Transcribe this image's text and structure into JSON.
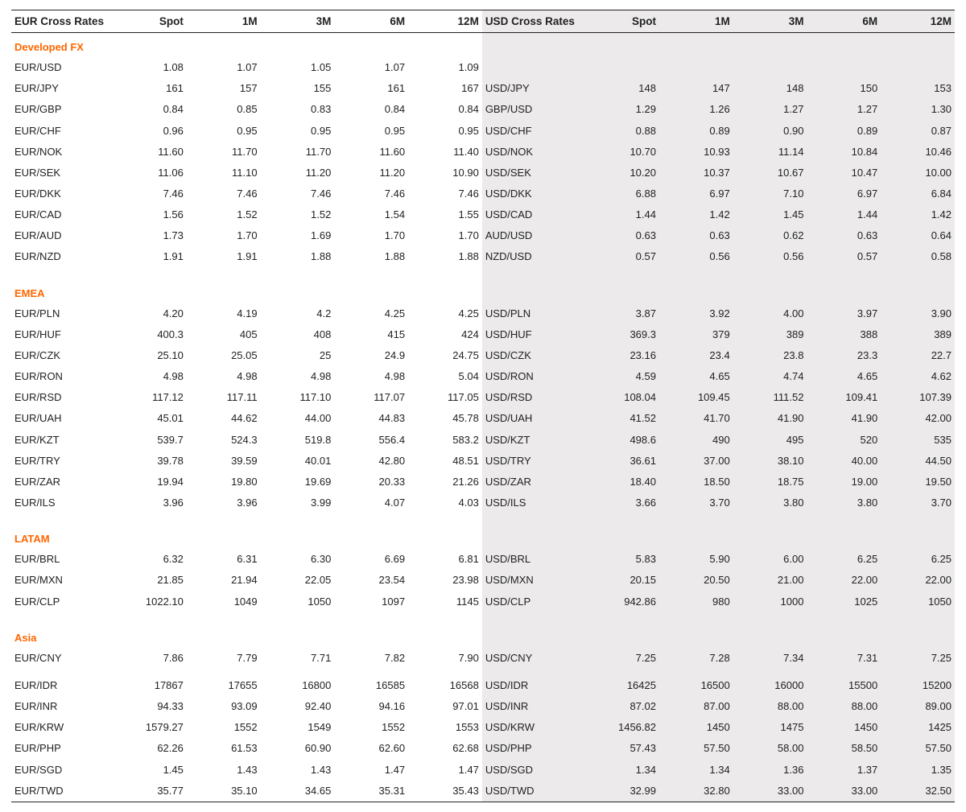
{
  "headers": {
    "eur": "EUR Cross Rates",
    "usd": "USD Cross Rates",
    "cols": [
      "Spot",
      "1M",
      "3M",
      "6M",
      "12M"
    ]
  },
  "styling": {
    "section_color": "#ff6600",
    "text_color": "#222222",
    "usd_bg": "#eceaea",
    "border_color": "#222222",
    "font_size_header": 13.5,
    "font_size_body": 13,
    "col_widths": {
      "label_eur": 110,
      "val": 80,
      "label_usd": 112
    }
  },
  "sections": [
    {
      "name": "Developed FX",
      "rows": [
        {
          "eur": "EUR/USD",
          "ev": [
            "1.08",
            "1.07",
            "1.05",
            "1.07",
            "1.09"
          ],
          "usd": "",
          "uv": [
            "",
            "",
            "",
            "",
            ""
          ]
        },
        {
          "eur": "EUR/JPY",
          "ev": [
            "161",
            "157",
            "155",
            "161",
            "167"
          ],
          "usd": "USD/JPY",
          "uv": [
            "148",
            "147",
            "148",
            "150",
            "153"
          ]
        },
        {
          "eur": "EUR/GBP",
          "ev": [
            "0.84",
            "0.85",
            "0.83",
            "0.84",
            "0.84"
          ],
          "usd": "GBP/USD",
          "uv": [
            "1.29",
            "1.26",
            "1.27",
            "1.27",
            "1.30"
          ]
        },
        {
          "eur": "EUR/CHF",
          "ev": [
            "0.96",
            "0.95",
            "0.95",
            "0.95",
            "0.95"
          ],
          "usd": "USD/CHF",
          "uv": [
            "0.88",
            "0.89",
            "0.90",
            "0.89",
            "0.87"
          ]
        },
        {
          "eur": "EUR/NOK",
          "ev": [
            "11.60",
            "11.70",
            "11.70",
            "11.60",
            "11.40"
          ],
          "usd": "USD/NOK",
          "uv": [
            "10.70",
            "10.93",
            "11.14",
            "10.84",
            "10.46"
          ]
        },
        {
          "eur": "EUR/SEK",
          "ev": [
            "11.06",
            "11.10",
            "11.20",
            "11.20",
            "10.90"
          ],
          "usd": "USD/SEK",
          "uv": [
            "10.20",
            "10.37",
            "10.67",
            "10.47",
            "10.00"
          ]
        },
        {
          "eur": "EUR/DKK",
          "ev": [
            "7.46",
            "7.46",
            "7.46",
            "7.46",
            "7.46"
          ],
          "usd": "USD/DKK",
          "uv": [
            "6.88",
            "6.97",
            "7.10",
            "6.97",
            "6.84"
          ]
        },
        {
          "eur": "EUR/CAD",
          "ev": [
            "1.56",
            "1.52",
            "1.52",
            "1.54",
            "1.55"
          ],
          "usd": "USD/CAD",
          "uv": [
            "1.44",
            "1.42",
            "1.45",
            "1.44",
            "1.42"
          ]
        },
        {
          "eur": "EUR/AUD",
          "ev": [
            "1.73",
            "1.70",
            "1.69",
            "1.70",
            "1.70"
          ],
          "usd": "AUD/USD",
          "uv": [
            "0.63",
            "0.63",
            "0.62",
            "0.63",
            "0.64"
          ]
        },
        {
          "eur": "EUR/NZD",
          "ev": [
            "1.91",
            "1.91",
            "1.88",
            "1.88",
            "1.88"
          ],
          "usd": "NZD/USD",
          "uv": [
            "0.57",
            "0.56",
            "0.56",
            "0.57",
            "0.58"
          ]
        }
      ]
    },
    {
      "name": "EMEA",
      "rows": [
        {
          "eur": "EUR/PLN",
          "ev": [
            "4.20",
            "4.19",
            "4.2",
            "4.25",
            "4.25"
          ],
          "usd": "USD/PLN",
          "uv": [
            "3.87",
            "3.92",
            "4.00",
            "3.97",
            "3.90"
          ]
        },
        {
          "eur": "EUR/HUF",
          "ev": [
            "400.3",
            "405",
            "408",
            "415",
            "424"
          ],
          "usd": "USD/HUF",
          "uv": [
            "369.3",
            "379",
            "389",
            "388",
            "389"
          ]
        },
        {
          "eur": "EUR/CZK",
          "ev": [
            "25.10",
            "25.05",
            "25",
            "24.9",
            "24.75"
          ],
          "usd": "USD/CZK",
          "uv": [
            "23.16",
            "23.4",
            "23.8",
            "23.3",
            "22.7"
          ]
        },
        {
          "eur": "EUR/RON",
          "ev": [
            "4.98",
            "4.98",
            "4.98",
            "4.98",
            "5.04"
          ],
          "usd": "USD/RON",
          "uv": [
            "4.59",
            "4.65",
            "4.74",
            "4.65",
            "4.62"
          ]
        },
        {
          "eur": "EUR/RSD",
          "ev": [
            "117.12",
            "117.11",
            "117.10",
            "117.07",
            "117.05"
          ],
          "usd": "USD/RSD",
          "uv": [
            "108.04",
            "109.45",
            "111.52",
            "109.41",
            "107.39"
          ]
        },
        {
          "eur": "EUR/UAH",
          "ev": [
            "45.01",
            "44.62",
            "44.00",
            "44.83",
            "45.78"
          ],
          "usd": "USD/UAH",
          "uv": [
            "41.52",
            "41.70",
            "41.90",
            "41.90",
            "42.00"
          ]
        },
        {
          "eur": "EUR/KZT",
          "ev": [
            "539.7",
            "524.3",
            "519.8",
            "556.4",
            "583.2"
          ],
          "usd": "USD/KZT",
          "uv": [
            "498.6",
            "490",
            "495",
            "520",
            "535"
          ]
        },
        {
          "eur": "EUR/TRY",
          "ev": [
            "39.78",
            "39.59",
            "40.01",
            "42.80",
            "48.51"
          ],
          "usd": "USD/TRY",
          "uv": [
            "36.61",
            "37.00",
            "38.10",
            "40.00",
            "44.50"
          ]
        },
        {
          "eur": "EUR/ZAR",
          "ev": [
            "19.94",
            "19.80",
            "19.69",
            "20.33",
            "21.26"
          ],
          "usd": "USD/ZAR",
          "uv": [
            "18.40",
            "18.50",
            "18.75",
            "19.00",
            "19.50"
          ]
        },
        {
          "eur": "EUR/ILS",
          "ev": [
            "3.96",
            "3.96",
            "3.99",
            "4.07",
            "4.03"
          ],
          "usd": "USD/ILS",
          "uv": [
            "3.66",
            "3.70",
            "3.80",
            "3.80",
            "3.70"
          ]
        }
      ]
    },
    {
      "name": "LATAM",
      "rows": [
        {
          "eur": "EUR/BRL",
          "ev": [
            "6.32",
            "6.31",
            "6.30",
            "6.69",
            "6.81"
          ],
          "usd": "USD/BRL",
          "uv": [
            "5.83",
            "5.90",
            "6.00",
            "6.25",
            "6.25"
          ]
        },
        {
          "eur": "EUR/MXN",
          "ev": [
            "21.85",
            "21.94",
            "22.05",
            "23.54",
            "23.98"
          ],
          "usd": "USD/MXN",
          "uv": [
            "20.15",
            "20.50",
            "21.00",
            "22.00",
            "22.00"
          ]
        },
        {
          "eur": "EUR/CLP",
          "ev": [
            "1022.10",
            "1049",
            "1050",
            "1097",
            "1145"
          ],
          "usd": "USD/CLP",
          "uv": [
            "942.86",
            "980",
            "1000",
            "1025",
            "1050"
          ]
        }
      ]
    },
    {
      "name": "Asia",
      "rows": [
        {
          "eur": "EUR/CNY",
          "ev": [
            "7.86",
            "7.79",
            "7.71",
            "7.82",
            "7.90"
          ],
          "usd": "USD/CNY",
          "uv": [
            "7.25",
            "7.28",
            "7.34",
            "7.31",
            "7.25"
          ],
          "gap_after": true
        },
        {
          "eur": "EUR/IDR",
          "ev": [
            "17867",
            "17655",
            "16800",
            "16585",
            "16568"
          ],
          "usd": "USD/IDR",
          "uv": [
            "16425",
            "16500",
            "16000",
            "15500",
            "15200"
          ]
        },
        {
          "eur": "EUR/INR",
          "ev": [
            "94.33",
            "93.09",
            "92.40",
            "94.16",
            "97.01"
          ],
          "usd": "USD/INR",
          "uv": [
            "87.02",
            "87.00",
            "88.00",
            "88.00",
            "89.00"
          ]
        },
        {
          "eur": "EUR/KRW",
          "ev": [
            "1579.27",
            "1552",
            "1549",
            "1552",
            "1553"
          ],
          "usd": "USD/KRW",
          "uv": [
            "1456.82",
            "1450",
            "1475",
            "1450",
            "1425"
          ]
        },
        {
          "eur": "EUR/PHP",
          "ev": [
            "62.26",
            "61.53",
            "60.90",
            "62.60",
            "62.68"
          ],
          "usd": "USD/PHP",
          "uv": [
            "57.43",
            "57.50",
            "58.00",
            "58.50",
            "57.50"
          ]
        },
        {
          "eur": "EUR/SGD",
          "ev": [
            "1.45",
            "1.43",
            "1.43",
            "1.47",
            "1.47"
          ],
          "usd": "USD/SGD",
          "uv": [
            "1.34",
            "1.34",
            "1.36",
            "1.37",
            "1.35"
          ]
        },
        {
          "eur": "EUR/TWD",
          "ev": [
            "35.77",
            "35.10",
            "34.65",
            "35.31",
            "35.43"
          ],
          "usd": "USD/TWD",
          "uv": [
            "32.99",
            "32.80",
            "33.00",
            "33.00",
            "32.50"
          ]
        }
      ]
    }
  ]
}
